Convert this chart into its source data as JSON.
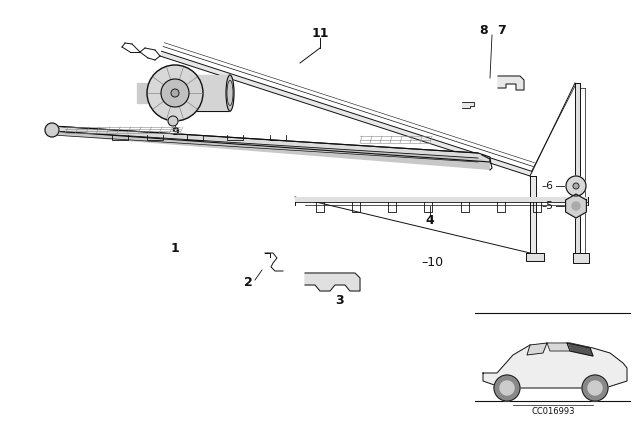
{
  "background_color": "#ffffff",
  "image_code": "CC016993",
  "line_color": "#111111",
  "lw_main": 0.8,
  "lw_thin": 0.5
}
